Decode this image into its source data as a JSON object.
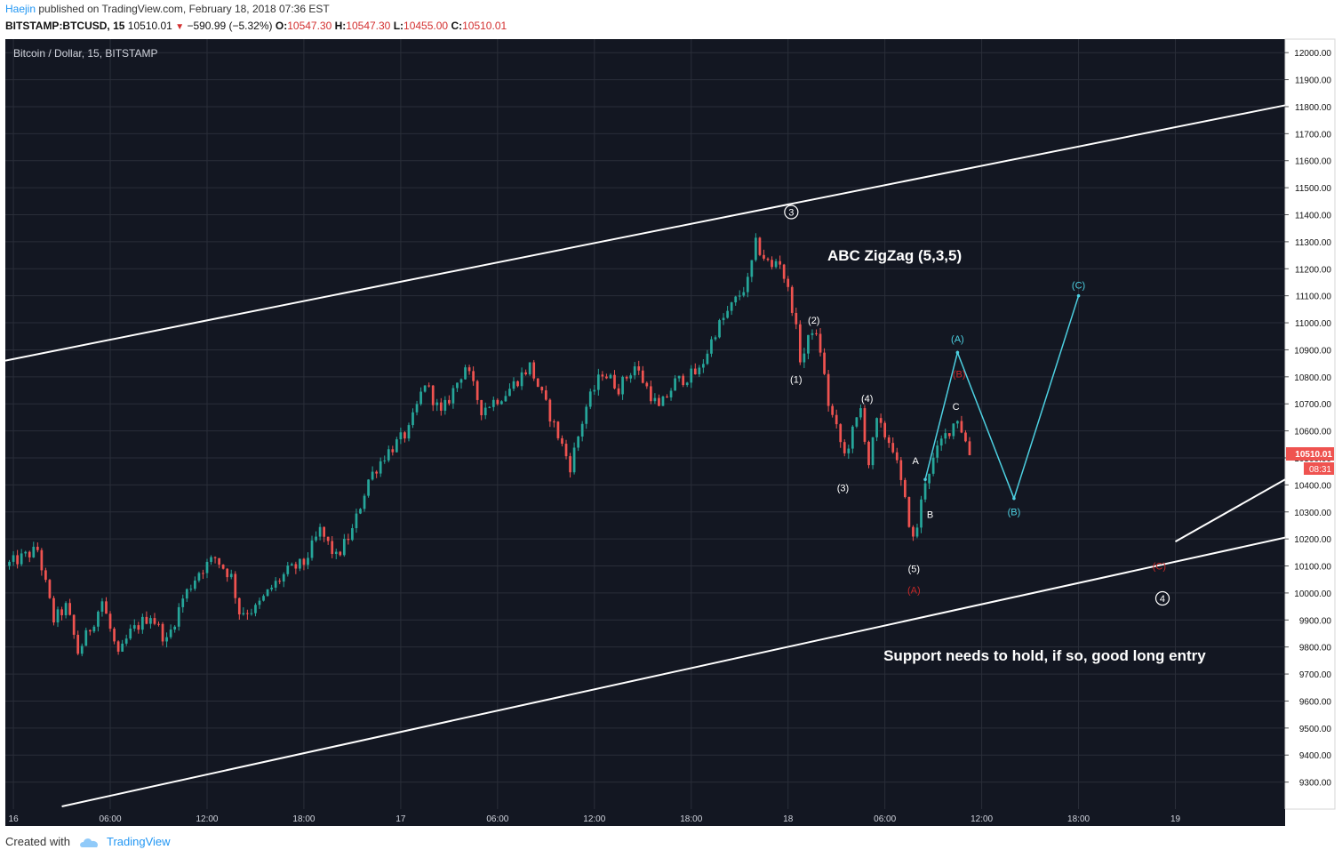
{
  "header": {
    "author": "Haejin",
    "published_text": "published on TradingView.com, February 18, 2018 07:36 EST",
    "symbol": "BITSTAMP:BTCUSD, 15",
    "last": "10510.01",
    "change": "−590.99 (−5.32%)",
    "o_label": "O:",
    "o_value": "10547.30",
    "h_label": "H:",
    "h_value": "10547.30",
    "l_label": "L:",
    "l_value": "10455.00",
    "c_label": "C:",
    "c_value": "10510.01"
  },
  "footer": {
    "created_with": "Created with",
    "brand": "TradingView"
  },
  "chart_data": {
    "type": "candlestick",
    "title": "Bitcoin / Dollar, 15, BITSTAMP",
    "ylim": [
      9200,
      12050
    ],
    "y_ticks": [
      9300,
      9400,
      9500,
      9600,
      9700,
      9800,
      9900,
      10000,
      10100,
      10200,
      10300,
      10400,
      10500,
      10600,
      10700,
      10800,
      10900,
      11000,
      11100,
      11200,
      11300,
      11400,
      11500,
      11600,
      11700,
      11800,
      11900,
      12000
    ],
    "y_tick_labels": [
      "9300.00",
      "9400.00",
      "9500.00",
      "9600.00",
      "9700.00",
      "9800.00",
      "9900.00",
      "10000.00",
      "10100.00",
      "10200.00",
      "10300.00",
      "10400.00",
      "10500.00",
      "10600.00",
      "10700.00",
      "10800.00",
      "10900.00",
      "11000.00",
      "11100.00",
      "11200.00",
      "11300.00",
      "11400.00",
      "11500.00",
      "11600.00",
      "11700.00",
      "11800.00",
      "11900.00",
      "12000.00"
    ],
    "x_range_hours": [
      -0.5,
      78.8
    ],
    "x_ticks": [
      {
        "hour": 0,
        "label": "16"
      },
      {
        "hour": 6,
        "label": "06:00"
      },
      {
        "hour": 12,
        "label": "12:00"
      },
      {
        "hour": 18,
        "label": "18:00"
      },
      {
        "hour": 24,
        "label": "17"
      },
      {
        "hour": 30,
        "label": "06:00"
      },
      {
        "hour": 36,
        "label": "12:00"
      },
      {
        "hour": 42,
        "label": "18:00"
      },
      {
        "hour": 48,
        "label": "18"
      },
      {
        "hour": 54,
        "label": "06:00"
      },
      {
        "hour": 60,
        "label": "12:00"
      },
      {
        "hour": 66,
        "label": "18:00"
      },
      {
        "hour": 72,
        "label": "19"
      }
    ],
    "price_path": [
      [
        -0.5,
        10100
      ],
      [
        1.5,
        10160
      ],
      [
        2.5,
        9900
      ],
      [
        3.3,
        9950
      ],
      [
        4,
        9780
      ],
      [
        5,
        9900
      ],
      [
        5.5,
        9970
      ],
      [
        6.5,
        9760
      ],
      [
        7.2,
        9850
      ],
      [
        8.5,
        9920
      ],
      [
        9.5,
        9820
      ],
      [
        10.5,
        9980
      ],
      [
        11.5,
        10080
      ],
      [
        12.5,
        10130
      ],
      [
        13.5,
        10060
      ],
      [
        14,
        9930
      ],
      [
        15,
        9940
      ],
      [
        16,
        10020
      ],
      [
        17,
        10080
      ],
      [
        18,
        10110
      ],
      [
        19,
        10230
      ],
      [
        20,
        10130
      ],
      [
        21,
        10230
      ],
      [
        22,
        10420
      ],
      [
        23,
        10510
      ],
      [
        24.5,
        10600
      ],
      [
        25.5,
        10780
      ],
      [
        26.5,
        10660
      ],
      [
        28,
        10840
      ],
      [
        29,
        10680
      ],
      [
        30.5,
        10740
      ],
      [
        32,
        10840
      ],
      [
        33.5,
        10620
      ],
      [
        34.5,
        10470
      ],
      [
        35.5,
        10690
      ],
      [
        36.5,
        10820
      ],
      [
        37.5,
        10760
      ],
      [
        38.5,
        10840
      ],
      [
        40,
        10680
      ],
      [
        41,
        10780
      ],
      [
        42.5,
        10820
      ],
      [
        43.5,
        10970
      ],
      [
        44.5,
        11060
      ],
      [
        45.5,
        11150
      ],
      [
        46,
        11290
      ],
      [
        47,
        11200
      ],
      [
        47.4,
        11250
      ],
      [
        47.8,
        11160
      ],
      [
        48.3,
        11050
      ],
      [
        48.8,
        10850
      ],
      [
        49.5,
        10980
      ],
      [
        50,
        10900
      ],
      [
        50.5,
        10700
      ],
      [
        51.5,
        10510
      ],
      [
        52.5,
        10680
      ],
      [
        53,
        10480
      ],
      [
        53.5,
        10630
      ],
      [
        54.5,
        10540
      ],
      [
        55.2,
        10350
      ],
      [
        55.8,
        10180
      ],
      [
        56.5,
        10420
      ],
      [
        57.5,
        10560
      ],
      [
        58.5,
        10650
      ],
      [
        59,
        10560
      ],
      [
        59.3,
        10510
      ]
    ],
    "price_label": "10510.01",
    "countdown_label": "08:31",
    "channel_upper": [
      [
        -0.5,
        10860
      ],
      [
        78.8,
        11805
      ]
    ],
    "channel_lower": [
      [
        3,
        9210
      ],
      [
        78.8,
        10205
      ]
    ],
    "extra_line": [
      [
        72,
        10190
      ],
      [
        78.8,
        10420
      ]
    ],
    "wave_path": [
      [
        56.5,
        10420
      ],
      [
        58.5,
        10890
      ],
      [
        62,
        10350
      ],
      [
        66,
        11100
      ]
    ],
    "annotations": [
      {
        "text": "3",
        "hour": 48.2,
        "price": 11410,
        "style": "circled"
      },
      {
        "text": "4",
        "hour": 71.2,
        "price": 9980,
        "style": "circled"
      },
      {
        "text": "ABC ZigZag (5,3,5)",
        "hour": 54.6,
        "price": 11250,
        "style": "title"
      },
      {
        "text": "Support needs to hold, if so, good long entry",
        "hour": 63.9,
        "price": 9770,
        "style": "title"
      },
      {
        "text": "(2)",
        "hour": 49.6,
        "price": 11010,
        "style": "white"
      },
      {
        "text": "(1)",
        "hour": 48.5,
        "price": 10790,
        "style": "white"
      },
      {
        "text": "(4)",
        "hour": 52.9,
        "price": 10720,
        "style": "white"
      },
      {
        "text": "(3)",
        "hour": 51.4,
        "price": 10390,
        "style": "white"
      },
      {
        "text": "(5)",
        "hour": 55.8,
        "price": 10090,
        "style": "white"
      },
      {
        "text": "A",
        "hour": 55.9,
        "price": 10490,
        "style": "white"
      },
      {
        "text": "B",
        "hour": 56.8,
        "price": 10290,
        "style": "white"
      },
      {
        "text": "C",
        "hour": 58.4,
        "price": 10690,
        "style": "white"
      },
      {
        "text": "(A)",
        "hour": 55.8,
        "price": 10010,
        "style": "red"
      },
      {
        "text": "(B)",
        "hour": 58.6,
        "price": 10810,
        "style": "red"
      },
      {
        "text": "(C)",
        "hour": 71.0,
        "price": 10100,
        "style": "red"
      },
      {
        "text": "(A)",
        "hour": 58.5,
        "price": 10940,
        "style": "cyan"
      },
      {
        "text": "(B)",
        "hour": 62.0,
        "price": 10300,
        "style": "cyan"
      },
      {
        "text": "(C)",
        "hour": 66.0,
        "price": 11140,
        "style": "cyan"
      }
    ],
    "colors": {
      "background": "#131722",
      "up": "#26a69a",
      "down": "#ef5350",
      "wave": "#4dd0e1",
      "channel": "#ffffff",
      "grid": "#2a2e39",
      "red_label": "#c62828"
    }
  }
}
